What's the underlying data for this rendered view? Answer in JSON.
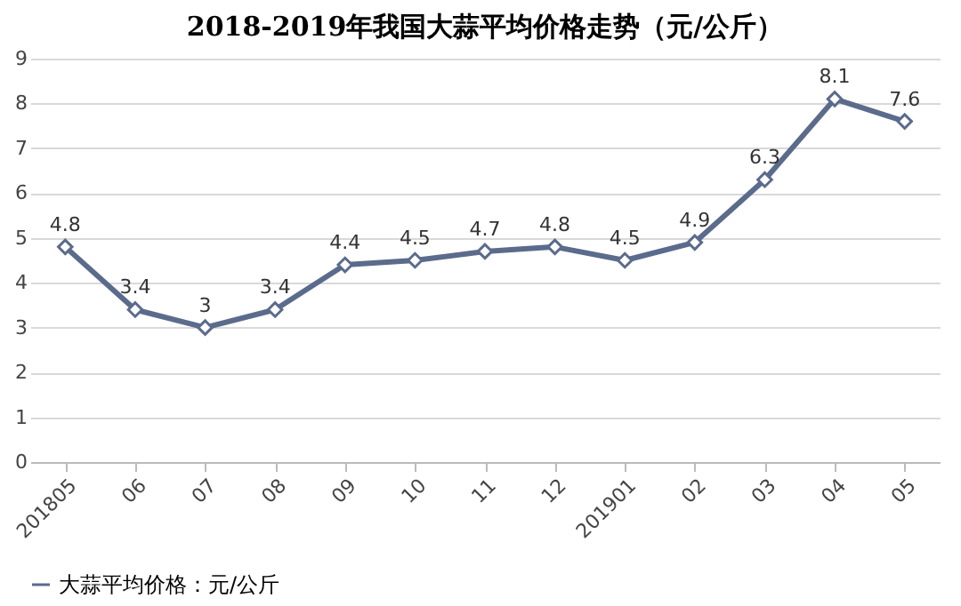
{
  "chart_data": {
    "type": "line",
    "title": "2018-2019年我国大蒜平均价格走势（元/公斤）",
    "categories": [
      "201805",
      "06",
      "07",
      "08",
      "09",
      "10",
      "11",
      "12",
      "201901",
      "02",
      "03",
      "04",
      "05"
    ],
    "series": [
      {
        "name": "大蒜平均价格：元/公斤",
        "color": "#5b6b8c",
        "values": [
          4.8,
          3.4,
          3,
          3.4,
          4.4,
          4.5,
          4.7,
          4.8,
          4.5,
          4.9,
          6.3,
          8.1,
          7.6
        ]
      }
    ],
    "ylim": [
      0,
      9
    ],
    "yticks": [
      0,
      1,
      2,
      3,
      4,
      5,
      6,
      7,
      8,
      9
    ],
    "grid": "y",
    "legend": "bottom",
    "marker": "diamond",
    "line_style": "solid",
    "data_labels": true
  }
}
